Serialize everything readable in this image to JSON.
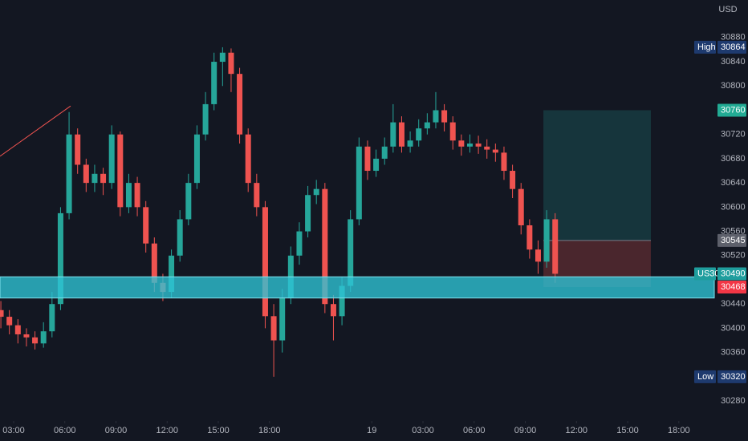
{
  "chart_data": {
    "type": "candlestick",
    "currency": "USD",
    "xlim": [
      2.2,
      44.08
    ],
    "ylim": [
      30247,
      30942
    ],
    "grid": false,
    "xticks": [
      {
        "value": 3,
        "label": "03:00"
      },
      {
        "value": 6,
        "label": "06:00"
      },
      {
        "value": 9,
        "label": "09:00"
      },
      {
        "value": 12,
        "label": "12:00"
      },
      {
        "value": 15,
        "label": "15:00"
      },
      {
        "value": 18,
        "label": "18:00"
      },
      {
        "value": 24,
        "label": "19"
      },
      {
        "value": 27,
        "label": "03:00"
      },
      {
        "value": 30,
        "label": "06:00"
      },
      {
        "value": 33,
        "label": "09:00"
      },
      {
        "value": 36,
        "label": "12:00"
      },
      {
        "value": 39,
        "label": "15:00"
      },
      {
        "value": 42,
        "label": "18:00"
      }
    ],
    "yticks": [
      30880,
      30840,
      30800,
      30720,
      30680,
      30640,
      30600,
      30560,
      30520,
      30440,
      30400,
      30360,
      30280
    ],
    "up_color": "#26a69a",
    "down_color": "#ef5350",
    "series": {
      "x": [
        2.25,
        2.75,
        3.25,
        3.75,
        4.25,
        4.75,
        5.25,
        5.75,
        6.25,
        6.75,
        7.25,
        7.75,
        8.25,
        8.75,
        9.25,
        9.75,
        10.25,
        10.75,
        11.25,
        11.75,
        12.25,
        12.75,
        13.25,
        13.75,
        14.25,
        14.75,
        15.25,
        15.75,
        16.25,
        16.75,
        17.25,
        17.75,
        18.25,
        18.75,
        19.25,
        19.75,
        20.25,
        20.75,
        21.25,
        21.75,
        22.25,
        22.75,
        23.25,
        23.75,
        24.25,
        24.75,
        25.25,
        25.75,
        26.25,
        26.75,
        27.25,
        27.75,
        28.25,
        28.75,
        29.25,
        29.75,
        30.25,
        30.75,
        31.25,
        31.75,
        32.25,
        32.75,
        33.25,
        33.75,
        34.25,
        34.75
      ],
      "open": [
        30430,
        30419,
        30405,
        30390,
        30385,
        30375,
        30395,
        30440,
        30590,
        30720,
        30670,
        30640,
        30655,
        30640,
        30720,
        30600,
        30640,
        30600,
        30540,
        30475,
        30460,
        30520,
        30580,
        30640,
        30720,
        30770,
        30840,
        30855,
        30820,
        30720,
        30640,
        30600,
        30420,
        30380,
        30450,
        30520,
        30560,
        30620,
        30630,
        30440,
        30420,
        30470,
        30580,
        30700,
        30660,
        30680,
        30700,
        30740,
        30700,
        30710,
        30730,
        30740,
        30760,
        30740,
        30710,
        30700,
        30705,
        30700,
        30695,
        30690,
        30660,
        30630,
        30570,
        30530,
        30510,
        30580
      ],
      "high": [
        30445,
        30430,
        30415,
        30400,
        30395,
        30410,
        30460,
        30600,
        30757,
        30730,
        30680,
        30670,
        30665,
        30735,
        30725,
        30655,
        30650,
        30610,
        30550,
        30490,
        30530,
        30595,
        30655,
        30735,
        30790,
        30855,
        30864,
        30862,
        30830,
        30730,
        30655,
        30610,
        30440,
        30465,
        30535,
        30575,
        30635,
        30645,
        30640,
        30455,
        30485,
        30595,
        30715,
        30710,
        30695,
        30715,
        30770,
        30750,
        30725,
        30745,
        30755,
        30790,
        30770,
        30750,
        30720,
        30720,
        30718,
        30712,
        30705,
        30700,
        30670,
        30640,
        30580,
        30545,
        30595,
        30590
      ],
      "low": [
        30400,
        30390,
        30375,
        30370,
        30365,
        30368,
        30385,
        30430,
        30580,
        30655,
        30625,
        30625,
        30620,
        30630,
        30585,
        30590,
        30585,
        30525,
        30460,
        30445,
        30450,
        30510,
        30570,
        30630,
        30710,
        30760,
        30800,
        30790,
        30705,
        30625,
        30585,
        30400,
        30320,
        30360,
        30440,
        30505,
        30550,
        30605,
        30425,
        30380,
        30405,
        30460,
        30570,
        30645,
        30650,
        30670,
        30690,
        30690,
        30690,
        30700,
        30720,
        30730,
        30725,
        30695,
        30685,
        30690,
        30688,
        30680,
        30675,
        30645,
        30615,
        30555,
        30515,
        30490,
        30500,
        30475
      ],
      "close": [
        30419,
        30405,
        30390,
        30385,
        30375,
        30395,
        30440,
        30590,
        30720,
        30670,
        30640,
        30655,
        30640,
        30720,
        30600,
        30640,
        30600,
        30540,
        30475,
        30460,
        30520,
        30580,
        30640,
        30720,
        30770,
        30840,
        30855,
        30820,
        30720,
        30640,
        30600,
        30420,
        30380,
        30450,
        30520,
        30560,
        30620,
        30630,
        30440,
        30420,
        30470,
        30580,
        30700,
        30660,
        30680,
        30700,
        30740,
        30700,
        30710,
        30730,
        30740,
        30760,
        30740,
        30710,
        30700,
        30705,
        30700,
        30695,
        30690,
        30660,
        30630,
        30570,
        30530,
        30510,
        30580,
        30490
      ]
    },
    "trend_line": {
      "x": [
        2.2,
        6.34
      ],
      "y": [
        30684,
        30767
      ],
      "color": "#ef5350"
    },
    "zone": {
      "low": 30450,
      "high": 30485,
      "color": "#2ec4d6"
    },
    "position": {
      "x": [
        34.06,
        40.36
      ],
      "target": 30760,
      "entry": 30545,
      "stop": 30468
    },
    "last": {
      "label": "US30",
      "value": 30490
    },
    "high": {
      "label": "High",
      "value": 30864
    },
    "low": {
      "label": "Low",
      "value": 30320
    }
  }
}
